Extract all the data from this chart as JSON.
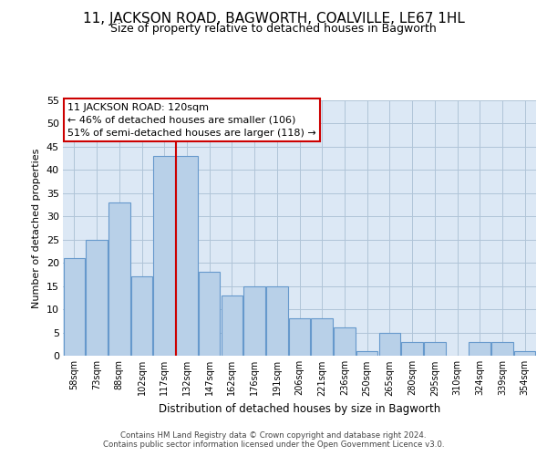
{
  "title": "11, JACKSON ROAD, BAGWORTH, COALVILLE, LE67 1HL",
  "subtitle": "Size of property relative to detached houses in Bagworth",
  "xlabel": "Distribution of detached houses by size in Bagworth",
  "ylabel": "Number of detached properties",
  "categories": [
    "58sqm",
    "73sqm",
    "88sqm",
    "102sqm",
    "117sqm",
    "132sqm",
    "147sqm",
    "162sqm",
    "176sqm",
    "191sqm",
    "206sqm",
    "221sqm",
    "236sqm",
    "250sqm",
    "265sqm",
    "280sqm",
    "295sqm",
    "310sqm",
    "324sqm",
    "339sqm",
    "354sqm"
  ],
  "values": [
    21,
    25,
    33,
    17,
    43,
    43,
    18,
    13,
    15,
    15,
    8,
    8,
    6,
    1,
    5,
    3,
    3,
    0,
    3,
    3,
    1
  ],
  "bar_color": "#b8d0e8",
  "bar_edge_color": "#6699cc",
  "vline_color": "#cc0000",
  "vline_position": 4.5,
  "annotation_text": "11 JACKSON ROAD: 120sqm\n← 46% of detached houses are smaller (106)\n51% of semi-detached houses are larger (118) →",
  "annotation_box_color": "#ffffff",
  "annotation_box_edge": "#cc0000",
  "ylim": [
    0,
    55
  ],
  "yticks": [
    0,
    5,
    10,
    15,
    20,
    25,
    30,
    35,
    40,
    45,
    50,
    55
  ],
  "footer": "Contains HM Land Registry data © Crown copyright and database right 2024.\nContains public sector information licensed under the Open Government Licence v3.0.",
  "title_fontsize": 11,
  "subtitle_fontsize": 9,
  "bg_color": "#ffffff",
  "plot_bg_color": "#dce8f5",
  "grid_color": "#b0c4d8"
}
